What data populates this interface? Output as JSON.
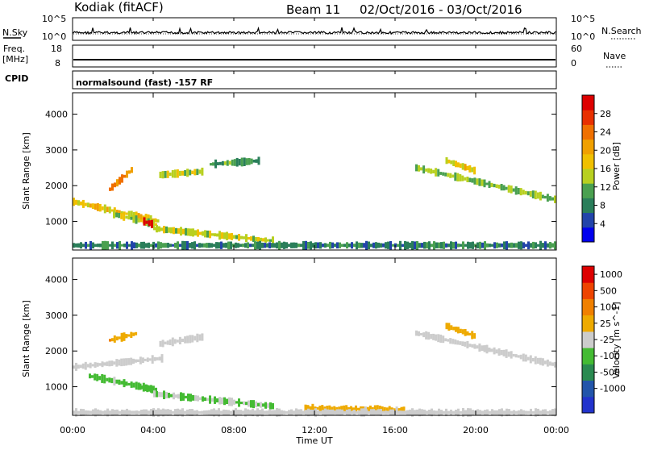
{
  "header": {
    "radar": "Kodiak (fitACF)",
    "beam": "Beam 11",
    "date_range": "02/Oct/2016 - 03/Oct/2016"
  },
  "nsky_panel": {
    "left_label": "N.Sky",
    "right_label": "N.Search",
    "left_ticks": [
      "10^5",
      "10^0"
    ],
    "right_ticks": [
      "10^5",
      "10^0"
    ]
  },
  "freq_panel": {
    "left_label_1": "Freq.",
    "left_label_2": "[MHz]",
    "right_label": "Nave",
    "left_ticks": [
      "18",
      "8"
    ],
    "right_ticks": [
      "60",
      "0"
    ]
  },
  "cpid_panel": {
    "label": "CPID",
    "text": "normalsound (fast) -157 RF"
  },
  "x_axis": {
    "title": "Time UT",
    "ticks": [
      "00:00",
      "04:00",
      "08:00",
      "12:00",
      "16:00",
      "20:00",
      "00:00"
    ]
  },
  "power_panel": {
    "ylabel": "Slant Range [km]",
    "yticks": [
      "4000",
      "3000",
      "2000",
      "1000"
    ],
    "colorbar_label": "Power [dB]",
    "colorbar_ticks": [
      "28",
      "24",
      "20",
      "16",
      "12",
      "8",
      "4"
    ],
    "colorbar_colors": [
      "#0000ee",
      "#2244aa",
      "#2a7e5a",
      "#4aa050",
      "#b8d020",
      "#f0c000",
      "#f0a000",
      "#f07000",
      "#e83000",
      "#dd0000"
    ]
  },
  "velocity_panel": {
    "ylabel": "Slant Range [km]",
    "yticks": [
      "4000",
      "3000",
      "2000",
      "1000"
    ],
    "colorbar_label": "Velocity [m s^-1]",
    "colorbar_ticks": [
      "1000",
      "500",
      "100",
      "25",
      "-25",
      "-100",
      "-500",
      "-1000"
    ],
    "colorbar_colors": [
      "#2233cc",
      "#2255aa",
      "#2a8a50",
      "#44bb33",
      "#cccccc",
      "#eeaa00",
      "#f08000",
      "#ee4400",
      "#dd0000"
    ]
  },
  "chart_data": [
    {
      "type": "line",
      "title": "N.Sky / N.Search",
      "x": [
        0,
        2,
        4,
        6,
        8,
        10,
        12,
        14,
        16,
        18,
        20,
        22,
        24
      ],
      "series": [
        {
          "values": [
            2,
            2,
            3,
            3,
            2,
            2,
            2,
            2,
            2,
            2,
            2,
            2,
            2
          ]
        }
      ],
      "ylim_left": [
        "10^0",
        "10^5"
      ]
    },
    {
      "type": "line",
      "title": "Freq. [MHz] / Nave",
      "x": [
        0,
        24
      ],
      "series": [
        {
          "values": [
            10.5,
            10.5
          ]
        }
      ],
      "ylim_left": [
        8,
        18
      ],
      "ylim_right": [
        0,
        60
      ]
    },
    {
      "type": "heatmap",
      "title": "Power [dB]",
      "xlabel": "Time UT",
      "ylabel": "Slant Range [km]",
      "xlim_hours": [
        0,
        24
      ],
      "ylim": [
        200,
        4600
      ],
      "colorbar_range": [
        0,
        30
      ],
      "echo_regions": [
        {
          "t0": 0,
          "t1": 4.3,
          "r_start": 1550,
          "r_end": 1000,
          "power": 16
        },
        {
          "t0": 1.8,
          "t1": 3.0,
          "r_start": 1900,
          "r_end": 2500,
          "power": 20
        },
        {
          "t0": 2.0,
          "t1": 4.2,
          "r_start": 1200,
          "r_end": 900,
          "power": 14
        },
        {
          "t0": 3.5,
          "t1": 4.0,
          "r_start": 1000,
          "r_end": 900,
          "power": 30
        },
        {
          "t0": 4.3,
          "t1": 6.5,
          "r_start": 2300,
          "r_end": 2400,
          "power": 14
        },
        {
          "t0": 6.8,
          "t1": 9.3,
          "r_start": 2600,
          "r_end": 2700,
          "power": 10
        },
        {
          "t0": 4.0,
          "t1": 10.0,
          "r_start": 800,
          "r_end": 450,
          "power": 14
        },
        {
          "t0": 0,
          "t1": 24,
          "r_start": 330,
          "r_end": 330,
          "power": 8
        },
        {
          "t0": 17.0,
          "t1": 24,
          "r_start": 2500,
          "r_end": 1600,
          "power": 12
        },
        {
          "t0": 18.5,
          "t1": 20.0,
          "r_start": 2700,
          "r_end": 2400,
          "power": 16
        }
      ]
    },
    {
      "type": "heatmap",
      "title": "Velocity [m s^-1]",
      "xlabel": "Time UT",
      "ylabel": "Slant Range [km]",
      "xlim_hours": [
        0,
        24
      ],
      "ylim": [
        200,
        4600
      ],
      "colorbar_range": [
        -1000,
        1000
      ],
      "echo_regions": [
        {
          "t0": 0,
          "t1": 4.5,
          "r_start": 1550,
          "r_end": 1800,
          "velocity": 0
        },
        {
          "t0": 1.8,
          "t1": 3.2,
          "r_start": 2300,
          "r_end": 2500,
          "velocity": -300
        },
        {
          "t0": 0.8,
          "t1": 4.2,
          "r_start": 1300,
          "r_end": 900,
          "velocity": 150
        },
        {
          "t0": 3.3,
          "t1": 4.0,
          "r_start": 1000,
          "r_end": 900,
          "velocity": 300
        },
        {
          "t0": 4.3,
          "t1": 6.5,
          "r_start": 2200,
          "r_end": 2400,
          "velocity": 0
        },
        {
          "t0": 4.0,
          "t1": 10.0,
          "r_start": 800,
          "r_end": 450,
          "velocity": 120
        },
        {
          "t0": 11.5,
          "t1": 16.5,
          "r_start": 400,
          "r_end": 350,
          "velocity": -150
        },
        {
          "t0": 0,
          "t1": 24,
          "r_start": 280,
          "r_end": 280,
          "velocity": 0
        },
        {
          "t0": 17.0,
          "t1": 24,
          "r_start": 2500,
          "r_end": 1600,
          "velocity": 0
        },
        {
          "t0": 18.5,
          "t1": 20.0,
          "r_start": 2700,
          "r_end": 2400,
          "velocity": -200
        }
      ]
    }
  ]
}
